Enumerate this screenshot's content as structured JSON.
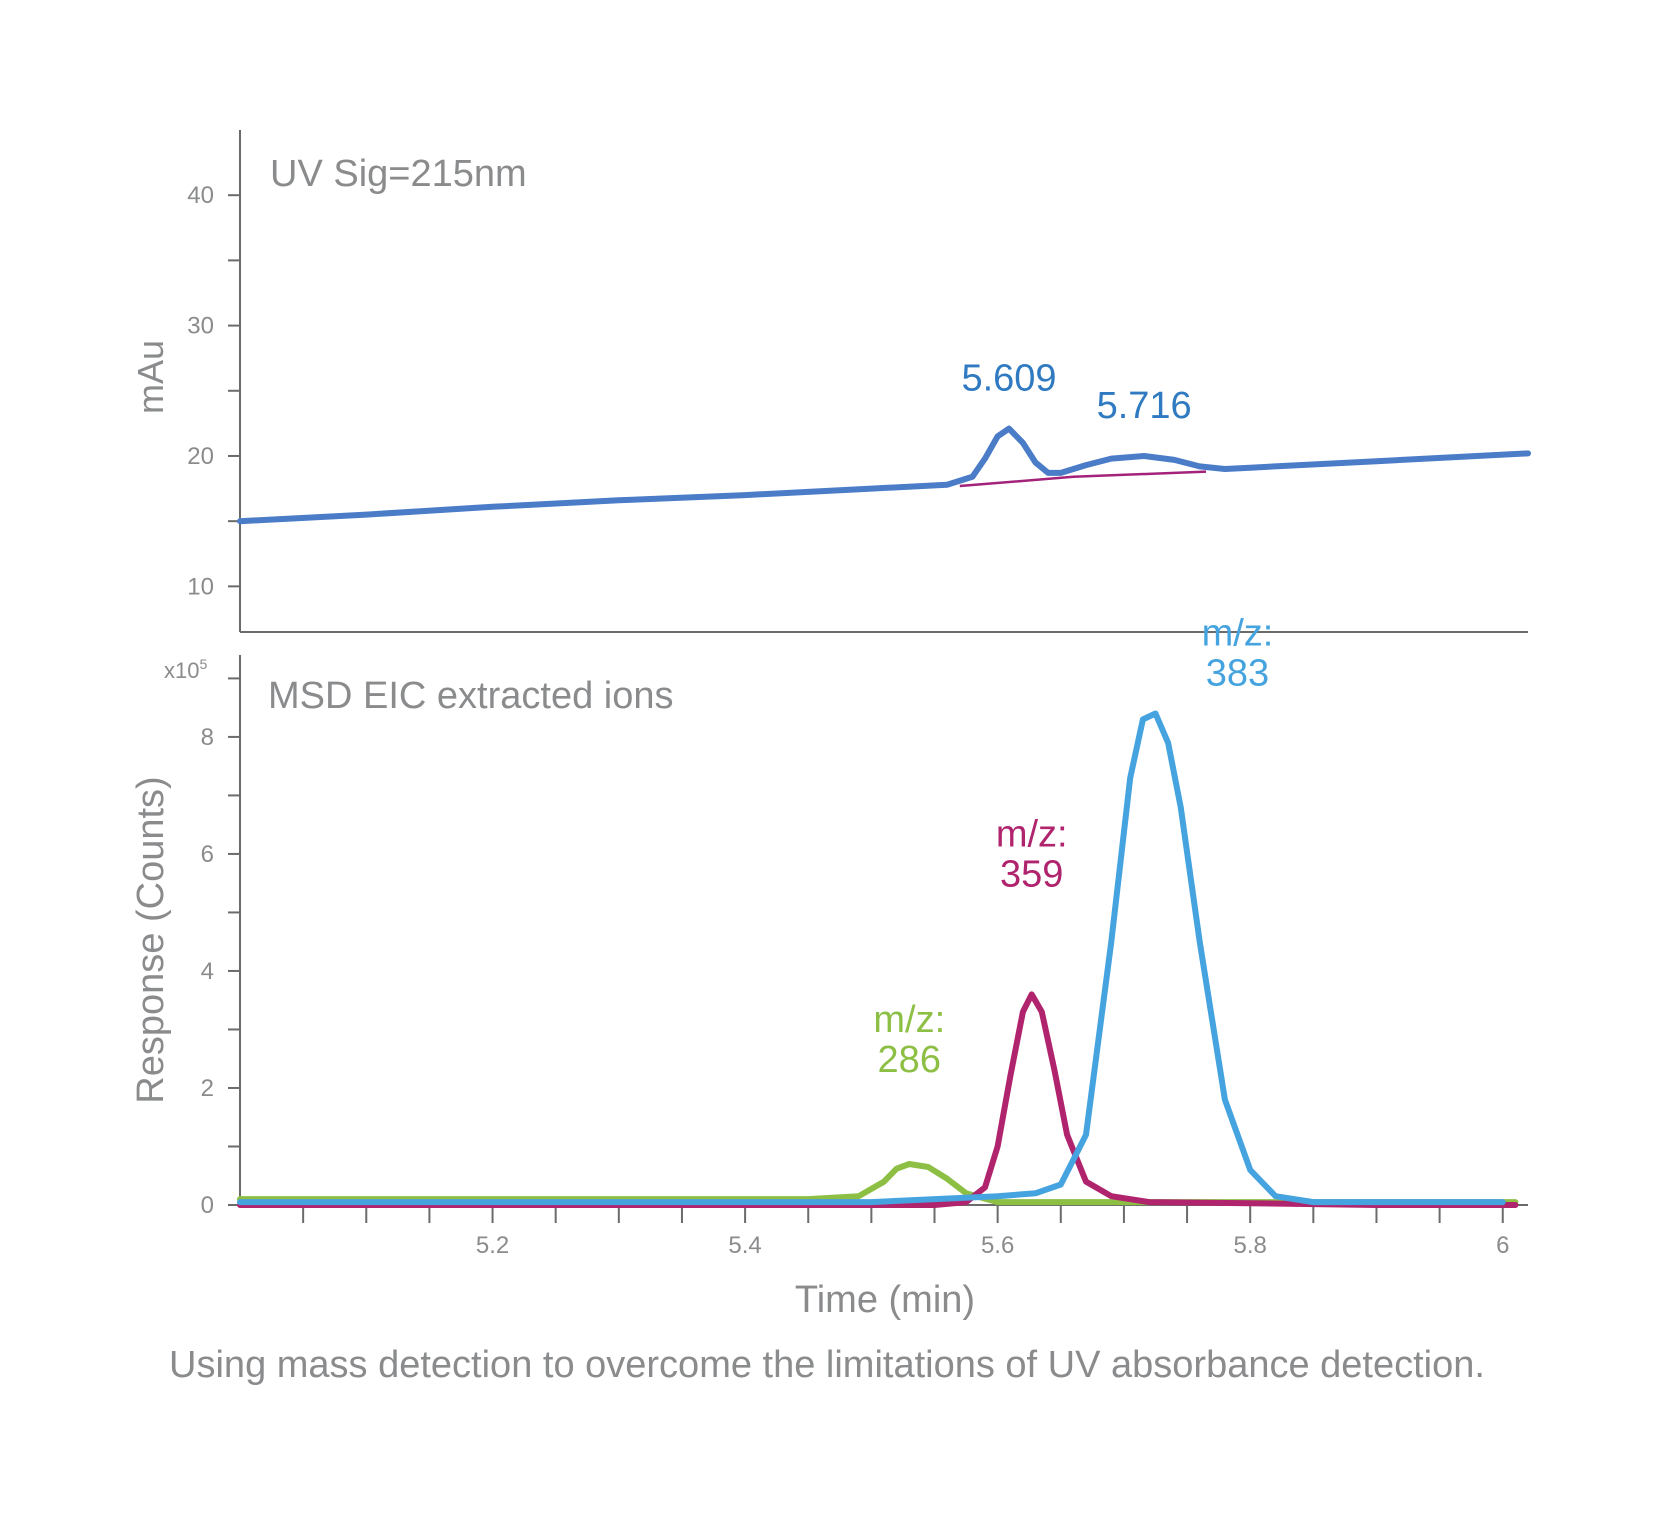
{
  "caption": "Using mass detection to overcome the limitations of UV absorbance detection.",
  "colors": {
    "axis": "#6b6b6b",
    "text": "#8a8b8d",
    "uv_trace": "#4a7cc7",
    "baseline": "#a3237a",
    "peak_label_uv": "#2f7ac0",
    "mz286": "#8cbf44",
    "mz359": "#b0246e",
    "mz383": "#45a3df"
  },
  "chart_data": [
    {
      "type": "line",
      "panel_title": "UV Sig=215nm",
      "ylabel": "mAu",
      "xlim": [
        5.0,
        6.02
      ],
      "ylim": [
        6.5,
        45
      ],
      "yticks": [
        10,
        20,
        30,
        40
      ],
      "ytick_labels": [
        "10",
        "20",
        "30",
        "40"
      ],
      "series": [
        {
          "name": "UV trace",
          "x": [
            5.0,
            5.1,
            5.2,
            5.3,
            5.4,
            5.5,
            5.56,
            5.58,
            5.59,
            5.6,
            5.609,
            5.62,
            5.63,
            5.64,
            5.65,
            5.67,
            5.69,
            5.716,
            5.74,
            5.76,
            5.78,
            5.8,
            5.9,
            6.02
          ],
          "y": [
            15.0,
            15.5,
            16.1,
            16.6,
            17.0,
            17.5,
            17.8,
            18.4,
            19.8,
            21.5,
            22.1,
            21.0,
            19.5,
            18.7,
            18.7,
            19.3,
            19.8,
            20.0,
            19.7,
            19.2,
            19.0,
            19.1,
            19.6,
            20.2
          ]
        },
        {
          "name": "baseline",
          "x": [
            5.57,
            5.66,
            5.765
          ],
          "y": [
            17.7,
            18.4,
            18.8
          ]
        }
      ],
      "peak_labels": [
        {
          "text": "5.609",
          "x": 5.609,
          "y": 22.1
        },
        {
          "text": "5.716",
          "x": 5.716,
          "y": 20.0
        }
      ]
    },
    {
      "type": "line",
      "panel_title": "MSD EIC extracted ions",
      "ylabel": "Response (Counts)",
      "y_multiplier": "x10",
      "y_multiplier_exp": "5",
      "xlabel": "Time (min)",
      "xlim": [
        5.0,
        6.02
      ],
      "ylim": [
        0,
        9.4
      ],
      "yticks": [
        0,
        2,
        4,
        6,
        8
      ],
      "ytick_labels": [
        "0",
        "2",
        "4",
        "6",
        "8"
      ],
      "xticks": [
        5.2,
        5.4,
        5.6,
        5.8,
        6.0
      ],
      "xtick_labels": [
        "5.2",
        "5.4",
        "5.6",
        "5.8",
        "6"
      ],
      "series": [
        {
          "name": "m/z: 286",
          "label_line1": "m/z:",
          "label_line2": "286",
          "x": [
            5.0,
            5.45,
            5.49,
            5.51,
            5.52,
            5.53,
            5.545,
            5.56,
            5.575,
            5.6,
            5.65,
            5.8,
            6.01
          ],
          "y": [
            0.1,
            0.1,
            0.15,
            0.4,
            0.62,
            0.7,
            0.65,
            0.45,
            0.2,
            0.05,
            0.05,
            0.05,
            0.05
          ]
        },
        {
          "name": "m/z: 359",
          "label_line1": "m/z:",
          "label_line2": "359",
          "x": [
            5.0,
            5.55,
            5.575,
            5.59,
            5.6,
            5.61,
            5.62,
            5.627,
            5.635,
            5.645,
            5.655,
            5.67,
            5.69,
            5.72,
            5.8,
            5.9,
            6.01
          ],
          "y": [
            0.0,
            0.0,
            0.05,
            0.3,
            1.0,
            2.2,
            3.3,
            3.6,
            3.3,
            2.3,
            1.2,
            0.4,
            0.15,
            0.05,
            0.03,
            0.0,
            0.0
          ]
        },
        {
          "name": "m/z: 383",
          "label_line1": "m/z:",
          "label_line2": "383",
          "x": [
            5.0,
            5.5,
            5.6,
            5.63,
            5.65,
            5.67,
            5.69,
            5.705,
            5.715,
            5.725,
            5.735,
            5.745,
            5.76,
            5.78,
            5.8,
            5.82,
            5.85,
            6.0
          ],
          "y": [
            0.05,
            0.05,
            0.15,
            0.2,
            0.35,
            1.2,
            4.5,
            7.3,
            8.3,
            8.4,
            7.9,
            6.8,
            4.5,
            1.8,
            0.6,
            0.15,
            0.05,
            0.05
          ]
        }
      ]
    }
  ]
}
